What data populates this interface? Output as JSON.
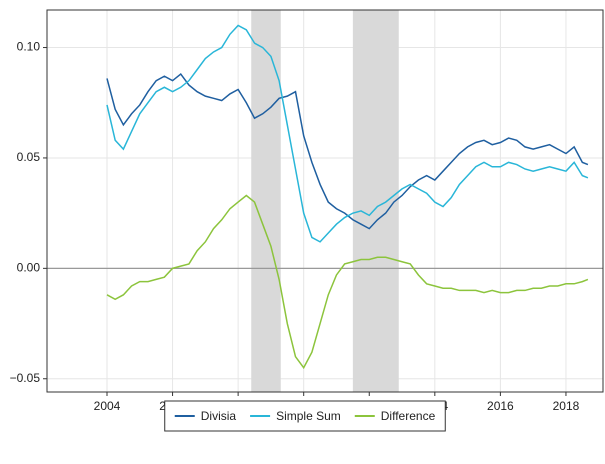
{
  "chart_data": {
    "type": "line",
    "x": [
      2004,
      2004.25,
      2004.5,
      2004.75,
      2005,
      2005.25,
      2005.5,
      2005.75,
      2006,
      2006.25,
      2006.5,
      2006.75,
      2007,
      2007.25,
      2007.5,
      2007.75,
      2008,
      2008.25,
      2008.5,
      2008.75,
      2009,
      2009.25,
      2009.5,
      2009.75,
      2010,
      2010.25,
      2010.5,
      2010.75,
      2011,
      2011.25,
      2011.5,
      2011.75,
      2012,
      2012.25,
      2012.5,
      2012.75,
      2013,
      2013.25,
      2013.5,
      2013.75,
      2014,
      2014.25,
      2014.5,
      2014.75,
      2015,
      2015.25,
      2015.5,
      2015.75,
      2016,
      2016.25,
      2016.5,
      2016.75,
      2017,
      2017.25,
      2017.5,
      2017.75,
      2018,
      2018.25,
      2018.5,
      2018.67
    ],
    "series": [
      {
        "name": "Divisia",
        "color": "#1f5fa0",
        "values": [
          0.086,
          0.072,
          0.065,
          0.07,
          0.074,
          0.08,
          0.085,
          0.087,
          0.085,
          0.088,
          0.083,
          0.08,
          0.078,
          0.077,
          0.076,
          0.079,
          0.081,
          0.075,
          0.068,
          0.07,
          0.073,
          0.077,
          0.078,
          0.08,
          0.06,
          0.048,
          0.038,
          0.03,
          0.027,
          0.025,
          0.022,
          0.02,
          0.018,
          0.022,
          0.025,
          0.03,
          0.033,
          0.037,
          0.04,
          0.042,
          0.04,
          0.044,
          0.048,
          0.052,
          0.055,
          0.057,
          0.058,
          0.056,
          0.057,
          0.059,
          0.058,
          0.055,
          0.054,
          0.055,
          0.056,
          0.054,
          0.052,
          0.055,
          0.048,
          0.047
        ]
      },
      {
        "name": "Simple Sum",
        "color": "#29b6d8",
        "values": [
          0.074,
          0.058,
          0.054,
          0.062,
          0.07,
          0.075,
          0.08,
          0.082,
          0.08,
          0.082,
          0.085,
          0.09,
          0.095,
          0.098,
          0.1,
          0.106,
          0.11,
          0.108,
          0.102,
          0.1,
          0.096,
          0.085,
          0.065,
          0.045,
          0.025,
          0.014,
          0.012,
          0.016,
          0.02,
          0.023,
          0.025,
          0.026,
          0.024,
          0.028,
          0.03,
          0.033,
          0.036,
          0.038,
          0.036,
          0.034,
          0.03,
          0.028,
          0.032,
          0.038,
          0.042,
          0.046,
          0.048,
          0.046,
          0.046,
          0.048,
          0.047,
          0.045,
          0.044,
          0.045,
          0.046,
          0.045,
          0.044,
          0.048,
          0.042,
          0.041
        ]
      },
      {
        "name": "Difference",
        "color": "#8cc43c",
        "values": [
          -0.012,
          -0.014,
          -0.012,
          -0.008,
          -0.006,
          -0.006,
          -0.005,
          -0.004,
          0.0,
          0.001,
          0.002,
          0.008,
          0.012,
          0.018,
          0.022,
          0.027,
          0.03,
          0.033,
          0.03,
          0.02,
          0.01,
          -0.005,
          -0.025,
          -0.04,
          -0.045,
          -0.038,
          -0.025,
          -0.012,
          -0.003,
          0.002,
          0.003,
          0.004,
          0.004,
          0.005,
          0.005,
          0.004,
          0.003,
          0.002,
          -0.003,
          -0.007,
          -0.008,
          -0.009,
          -0.009,
          -0.01,
          -0.01,
          -0.01,
          -0.011,
          -0.01,
          -0.011,
          -0.011,
          -0.01,
          -0.01,
          -0.009,
          -0.009,
          -0.008,
          -0.008,
          -0.007,
          -0.007,
          -0.006,
          -0.005
        ]
      }
    ],
    "shaded_regions": [
      [
        2008.4,
        2009.3
      ],
      [
        2011.5,
        2012.9
      ]
    ],
    "hline": 0,
    "xlim": [
      2002.17,
      2019.13
    ],
    "ylim": [
      -0.056,
      0.117
    ],
    "xticks": [
      2004,
      2006,
      2008,
      2010,
      2012,
      2014,
      2016,
      2018
    ],
    "yticks": [
      {
        "value": -0.05,
        "label": "−0.05"
      },
      {
        "value": 0,
        "label": "0.00"
      },
      {
        "value": 0.05,
        "label": "0.05"
      },
      {
        "value": 0.1,
        "label": "0.10"
      }
    ],
    "grid": true,
    "legend": "bottom"
  }
}
